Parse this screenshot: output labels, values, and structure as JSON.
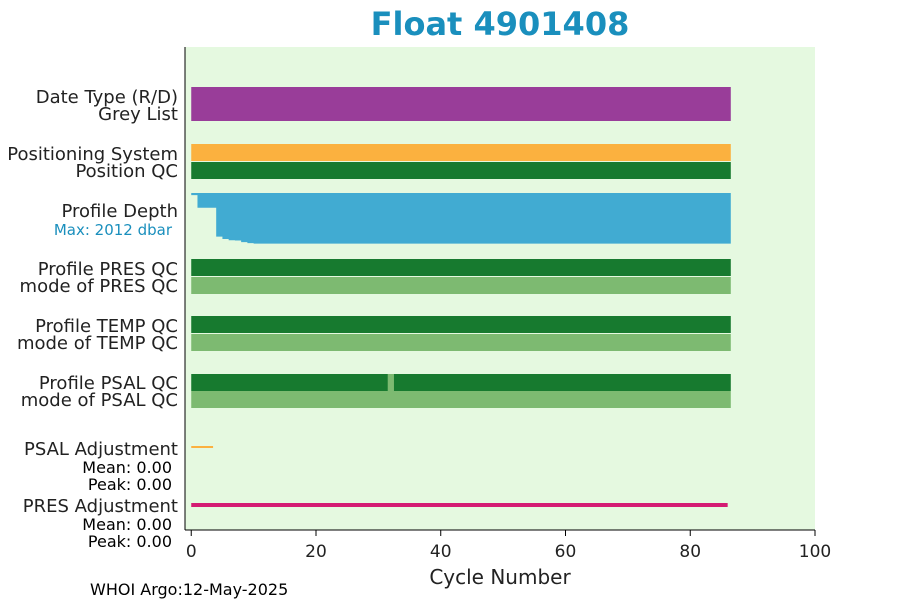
{
  "chart_data": {
    "type": "bar",
    "title": "Float 4901408",
    "xlabel": "Cycle Number",
    "xlim": [
      -1,
      100
    ],
    "xticks": [
      0,
      20,
      40,
      60,
      80,
      100
    ],
    "grid": false,
    "footer": "WHOI Argo:12-May-2025",
    "colors": {
      "title": "#1a8fbd",
      "background": "#e5f9e0",
      "purple": "#993d99",
      "orange": "#fbb13f",
      "dark_green": "#177a2f",
      "light_green": "#7dba71",
      "blue": "#41abd2",
      "magenta": "#d41c73",
      "max_label": "#1a8fbd"
    },
    "rows": [
      {
        "key": "date_type",
        "label": "Date Type (R/D)",
        "color": "purple",
        "x": [
          0,
          86.5
        ]
      },
      {
        "key": "grey_list",
        "label": "Grey List",
        "color": "purple",
        "x": [
          0,
          86.5
        ]
      },
      {
        "key": "positioning",
        "label": "Positioning System",
        "color": "orange",
        "x": [
          0,
          86.5
        ]
      },
      {
        "key": "position_qc",
        "label": "Position QC",
        "color": "dark_green",
        "x": [
          0,
          86.5
        ]
      },
      {
        "key": "profile_depth",
        "label": "Profile Depth",
        "sublabel": "Max: 2012 dbar",
        "color": "blue",
        "x": [
          0,
          86.5
        ]
      },
      {
        "key": "pres_qc",
        "label": "Profile PRES QC",
        "color": "dark_green",
        "x": [
          0,
          86.5
        ]
      },
      {
        "key": "pres_mode",
        "label": "mode of PRES QC",
        "color": "light_green",
        "x": [
          0,
          86.5
        ]
      },
      {
        "key": "temp_qc",
        "label": "Profile TEMP QC",
        "color": "dark_green",
        "x": [
          0,
          86.5
        ]
      },
      {
        "key": "temp_mode",
        "label": "mode of TEMP QC",
        "color": "light_green",
        "x": [
          0,
          86.5
        ]
      },
      {
        "key": "psal_qc",
        "label": "Profile PSAL QC",
        "color": "dark_green",
        "x": [
          0,
          86.5
        ],
        "gap_light_green": [
          31.5,
          32.5
        ]
      },
      {
        "key": "psal_mode",
        "label": "mode of PSAL QC",
        "color": "light_green",
        "x": [
          0,
          86.5
        ]
      },
      {
        "key": "psal_adj",
        "label": "PSAL Adjustment",
        "mean": "Mean: 0.00",
        "peak": "Peak: 0.00",
        "color": "orange",
        "x": [
          0,
          3.5
        ]
      },
      {
        "key": "pres_adj",
        "label": "PRES Adjustment",
        "mean": "Mean: 0.00",
        "peak": "Peak: 0.00",
        "color": "magenta",
        "x": [
          0,
          86
        ]
      }
    ],
    "profile_depth": {
      "max_dbar": 2012,
      "cycles": [
        0,
        1,
        2,
        3,
        4,
        5,
        6,
        7,
        8,
        9,
        10,
        85,
        86.5
      ],
      "depth_dbar": [
        80,
        570,
        570,
        570,
        1690,
        1780,
        1830,
        1840,
        1900,
        1940,
        1960,
        1960,
        1920
      ]
    }
  }
}
